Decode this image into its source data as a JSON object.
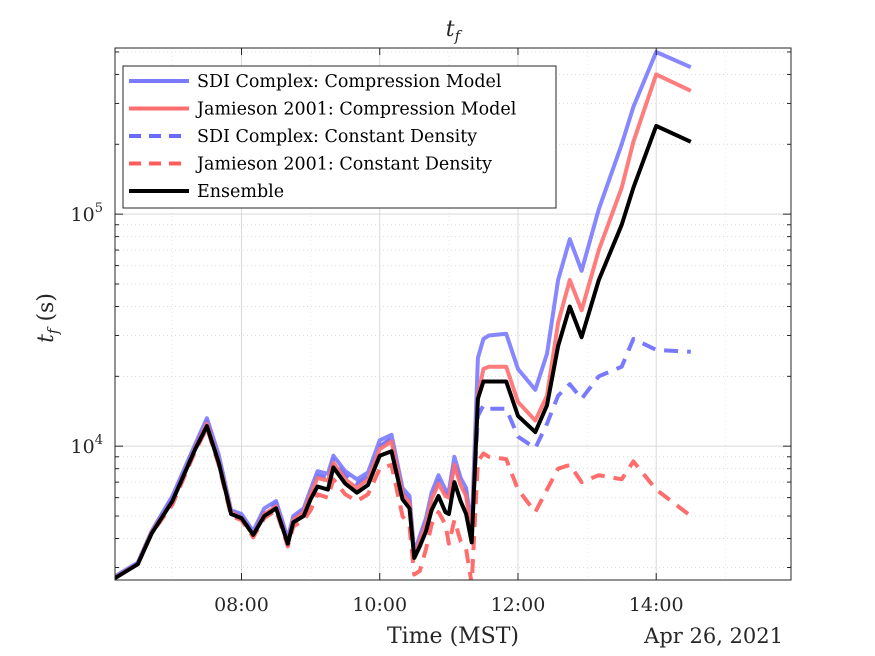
{
  "chart_data": {
    "type": "line",
    "title_main": "t",
    "title_sub": "f",
    "ylabel_main": "t",
    "ylabel_sub": "f",
    "ylabel_suffix": " (s)",
    "xlabel": "Time (MST)",
    "date_label": "Apr 26, 2021",
    "yscale": "log",
    "xlim": [
      6.17,
      15.95
    ],
    "ylim": [
      2650,
      520000
    ],
    "grid": true,
    "legend_position": "top-left",
    "xticks": [
      {
        "value": 8,
        "label": "08:00"
      },
      {
        "value": 10,
        "label": "10:00"
      },
      {
        "value": 12,
        "label": "12:00"
      },
      {
        "value": 14,
        "label": "14:00"
      }
    ],
    "yticks": [
      {
        "value": 10000,
        "base": "10",
        "exp": "4"
      },
      {
        "value": 100000,
        "base": "10",
        "exp": "5"
      }
    ],
    "x": [
      6.17,
      6.5,
      6.7,
      7.0,
      7.33,
      7.5,
      7.67,
      7.85,
      8.0,
      8.17,
      8.33,
      8.5,
      8.67,
      8.75,
      8.9,
      9.0,
      9.1,
      9.25,
      9.33,
      9.5,
      9.67,
      9.83,
      10.0,
      10.17,
      10.33,
      10.43,
      10.5,
      10.58,
      10.67,
      10.75,
      10.85,
      10.95,
      11.0,
      11.08,
      11.17,
      11.25,
      11.33,
      11.42,
      11.5,
      11.58,
      11.83,
      12.0,
      12.25,
      12.42,
      12.58,
      12.75,
      12.92,
      13.17,
      13.5,
      13.67,
      14.0,
      14.5,
      15.0,
      15.5,
      15.95
    ],
    "series": [
      {
        "name": "SDI Complex: Compression Model",
        "color": "#7a7aff",
        "dash": false,
        "width": 4,
        "values": [
          2750,
          3150,
          4300,
          6100,
          10200,
          13200,
          9200,
          5300,
          5100,
          4300,
          5400,
          5800,
          4000,
          5000,
          5400,
          6500,
          7800,
          7600,
          9100,
          7800,
          7200,
          7700,
          10600,
          11200,
          6600,
          6100,
          3450,
          4100,
          4900,
          6300,
          7500,
          6500,
          6400,
          9000,
          7300,
          6600,
          4400,
          24000,
          29000,
          30000,
          30500,
          21500,
          17500,
          25000,
          52000,
          78000,
          57000,
          105000,
          200000,
          290000,
          500000,
          430000,
          null,
          null,
          null
        ]
      },
      {
        "name": "Jamieson 2001: Compression Model",
        "color": "#ff6e6e",
        "dash": false,
        "width": 4,
        "values": [
          2720,
          3100,
          4250,
          5800,
          9800,
          12500,
          8600,
          5200,
          4900,
          4150,
          5100,
          5500,
          3800,
          4800,
          5200,
          6200,
          7300,
          7100,
          8500,
          7200,
          6600,
          7200,
          9700,
          10500,
          6200,
          5700,
          3300,
          3900,
          4600,
          5900,
          6900,
          6100,
          6000,
          8300,
          6800,
          6100,
          4100,
          16500,
          21500,
          22000,
          22000,
          15500,
          12900,
          16500,
          34000,
          52000,
          38500,
          70000,
          130000,
          205000,
          400000,
          340000,
          null,
          null,
          null
        ]
      },
      {
        "name": "SDI Complex: Constant Density",
        "color": "#6a6aff",
        "dash": true,
        "width": 4,
        "values": [
          2720,
          3120,
          4280,
          6000,
          10000,
          12800,
          8800,
          5200,
          5000,
          4200,
          5300,
          5700,
          3900,
          4900,
          5300,
          6300,
          7500,
          7300,
          8800,
          7500,
          6900,
          7400,
          10000,
          10800,
          6300,
          5800,
          3300,
          3900,
          4700,
          6000,
          7100,
          6300,
          6200,
          8600,
          7000,
          6300,
          4200,
          13500,
          15000,
          14500,
          14500,
          11000,
          9800,
          12500,
          16500,
          18500,
          16000,
          20000,
          22000,
          29000,
          26000,
          25500,
          null,
          null,
          null
        ]
      },
      {
        "name": "Jamieson 2001: Constant Density",
        "color": "#ff5c5c",
        "dash": true,
        "width": 4,
        "values": [
          2700,
          3100,
          4200,
          5600,
          9500,
          12000,
          8300,
          5000,
          4800,
          4050,
          4900,
          5300,
          3700,
          4500,
          4800,
          5300,
          6200,
          6000,
          7200,
          6200,
          5800,
          6200,
          8000,
          8300,
          5000,
          4500,
          2800,
          2900,
          3600,
          4600,
          5200,
          4600,
          3800,
          4800,
          3900,
          3600,
          2550,
          8600,
          9300,
          9000,
          8800,
          6500,
          5200,
          6500,
          8000,
          8300,
          7000,
          7500,
          7200,
          8600,
          6500,
          5000,
          null,
          null,
          null
        ]
      },
      {
        "name": "Ensemble",
        "color": "#000000",
        "dash": false,
        "width": 4,
        "values": [
          2700,
          3100,
          4200,
          5800,
          9700,
          12200,
          8500,
          5100,
          4900,
          4150,
          5000,
          5400,
          3800,
          4700,
          5000,
          5900,
          6700,
          6500,
          8100,
          6900,
          6300,
          6800,
          9100,
          9500,
          5900,
          5400,
          3300,
          3700,
          4300,
          5300,
          6100,
          5200,
          5100,
          7000,
          5800,
          5100,
          3850,
          16000,
          19000,
          19000,
          19000,
          13500,
          11500,
          15000,
          27000,
          40000,
          29500,
          52000,
          90000,
          130000,
          240000,
          205000,
          null,
          null,
          null
        ]
      }
    ]
  }
}
